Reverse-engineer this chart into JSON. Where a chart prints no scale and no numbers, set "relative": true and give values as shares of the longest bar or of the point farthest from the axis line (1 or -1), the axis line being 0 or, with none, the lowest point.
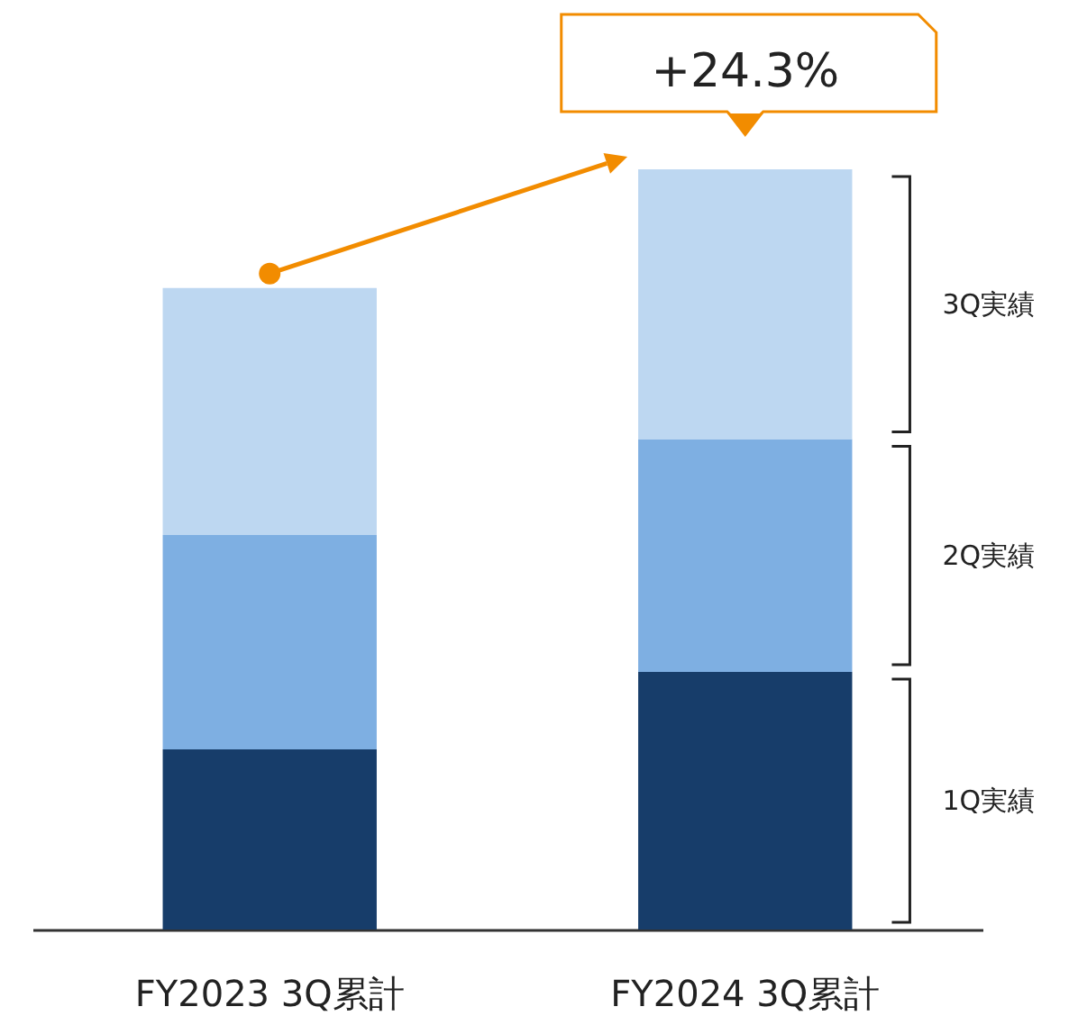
{
  "chart_data": {
    "type": "bar",
    "stacked": true,
    "relative": true,
    "categories": [
      "FY2023 3Q累計",
      "FY2024 3Q累計"
    ],
    "series": [
      {
        "name": "1Q実績",
        "color": "#173d6a",
        "values": [
          0.237,
          0.339
        ]
      },
      {
        "name": "2Q実績",
        "color": "#7eafe2",
        "values": [
          0.282,
          0.306
        ]
      },
      {
        "name": "3Q実績",
        "color": "#bdd7f1",
        "values": [
          0.325,
          0.355
        ]
      }
    ],
    "annotations": [
      "+24.3%"
    ]
  }
}
